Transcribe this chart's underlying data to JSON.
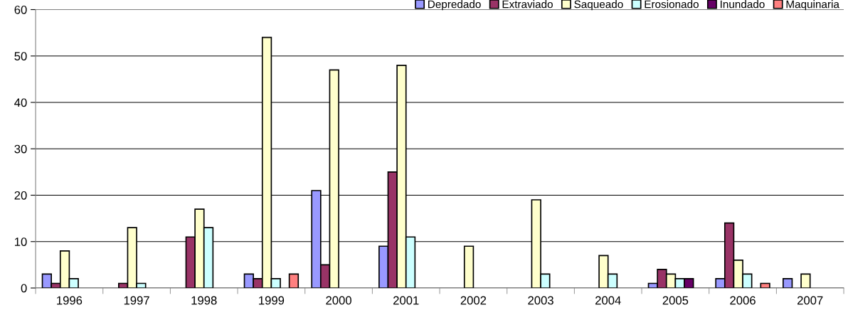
{
  "chart_data": {
    "type": "bar",
    "categories": [
      "1996",
      "1997",
      "1998",
      "1999",
      "2000",
      "2001",
      "2002",
      "2003",
      "2004",
      "2005",
      "2006",
      "2007"
    ],
    "series": [
      {
        "name": "Depredado",
        "color": "#9999ff",
        "values": [
          3,
          null,
          null,
          3,
          21,
          9,
          null,
          null,
          null,
          1,
          2,
          2
        ]
      },
      {
        "name": "Extraviado",
        "color": "#993366",
        "values": [
          1,
          1,
          11,
          2,
          5,
          25,
          null,
          null,
          null,
          4,
          14,
          null
        ]
      },
      {
        "name": "Saqueado",
        "color": "#ffffcc",
        "values": [
          8,
          13,
          17,
          54,
          47,
          48,
          9,
          19,
          7,
          3,
          6,
          3
        ]
      },
      {
        "name": "Erosionado",
        "color": "#ccffff",
        "values": [
          2,
          1,
          13,
          2,
          null,
          11,
          null,
          3,
          3,
          2,
          3,
          null
        ]
      },
      {
        "name": "Inundado",
        "color": "#660066",
        "values": [
          null,
          null,
          null,
          null,
          null,
          null,
          null,
          null,
          null,
          2,
          null,
          null
        ]
      },
      {
        "name": "Maquinaria",
        "color": "#ff8080",
        "values": [
          null,
          null,
          null,
          3,
          null,
          null,
          null,
          null,
          null,
          null,
          1,
          null
        ]
      }
    ],
    "ylim": [
      0,
      60
    ],
    "yticks": [
      0,
      10,
      20,
      30,
      40,
      50,
      60
    ],
    "grid": "y",
    "legend": "top right"
  }
}
